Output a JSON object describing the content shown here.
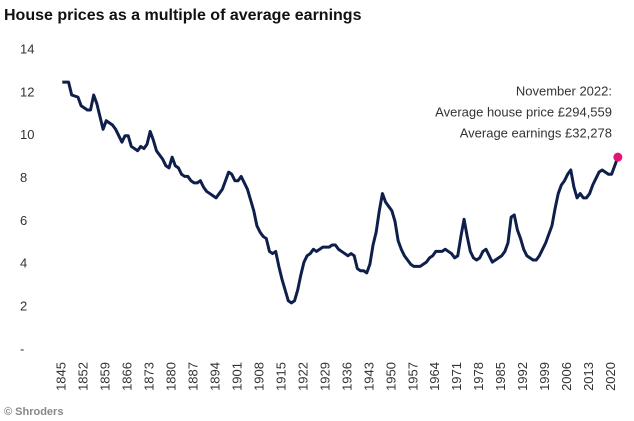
{
  "chart_data": {
    "type": "line",
    "title": "House prices as a multiple of average earnings",
    "annotation": [
      "November 2022:",
      "Average house price £294,559",
      "Average earnings  £32,278"
    ],
    "footer": "© Shroders",
    "color": "#0f1f4b",
    "highlight_color": "#e0157a",
    "grid": false,
    "x": [
      1845,
      1847,
      1848,
      1850,
      1851,
      1853,
      1854,
      1855,
      1856,
      1857,
      1858,
      1859,
      1861,
      1862,
      1863,
      1864,
      1865,
      1866,
      1867,
      1868,
      1869,
      1870,
      1871,
      1872,
      1873,
      1874,
      1875,
      1876,
      1877,
      1878,
      1879,
      1880,
      1881,
      1882,
      1883,
      1884,
      1885,
      1886,
      1887,
      1888,
      1889,
      1890,
      1891,
      1892,
      1893,
      1894,
      1895,
      1896,
      1897,
      1898,
      1899,
      1900,
      1901,
      1902,
      1903,
      1904,
      1905,
      1906,
      1907,
      1908,
      1909,
      1910,
      1911,
      1912,
      1913,
      1914,
      1915,
      1916,
      1917,
      1918,
      1919,
      1920,
      1921,
      1922,
      1923,
      1924,
      1925,
      1926,
      1927,
      1928,
      1929,
      1930,
      1931,
      1932,
      1933,
      1934,
      1935,
      1936,
      1937,
      1938,
      1939,
      1940,
      1941,
      1942,
      1943,
      1944,
      1945,
      1946,
      1947,
      1948,
      1949,
      1950,
      1951,
      1952,
      1953,
      1954,
      1955,
      1956,
      1957,
      1958,
      1959,
      1960,
      1961,
      1962,
      1963,
      1964,
      1965,
      1966,
      1967,
      1968,
      1969,
      1970,
      1971,
      1972,
      1973,
      1974,
      1975,
      1976,
      1977,
      1978,
      1979,
      1980,
      1981,
      1982,
      1983,
      1984,
      1985,
      1986,
      1987,
      1988,
      1989,
      1990,
      1991,
      1992,
      1993,
      1994,
      1995,
      1996,
      1997,
      1998,
      1999,
      2000,
      2001,
      2002,
      2003,
      2004,
      2005,
      2006,
      2007,
      2008,
      2009,
      2010,
      2011,
      2012,
      2013,
      2014,
      2015,
      2016,
      2017,
      2018,
      2019,
      2020,
      2021,
      2022
    ],
    "values": [
      12.5,
      12.5,
      11.9,
      11.8,
      11.4,
      11.2,
      11.2,
      11.9,
      11.5,
      10.9,
      10.3,
      10.7,
      10.5,
      10.3,
      10.0,
      9.7,
      10.0,
      10.0,
      9.5,
      9.4,
      9.3,
      9.5,
      9.4,
      9.6,
      10.2,
      9.8,
      9.3,
      9.1,
      8.9,
      8.6,
      8.5,
      9.0,
      8.6,
      8.5,
      8.2,
      8.1,
      8.1,
      7.9,
      7.8,
      7.8,
      7.9,
      7.6,
      7.4,
      7.3,
      7.2,
      7.1,
      7.3,
      7.5,
      7.9,
      8.3,
      8.2,
      7.9,
      7.9,
      8.1,
      7.8,
      7.5,
      7.0,
      6.5,
      5.8,
      5.5,
      5.3,
      5.2,
      4.6,
      4.5,
      4.6,
      3.9,
      3.3,
      2.8,
      2.3,
      2.2,
      2.3,
      2.8,
      3.5,
      4.1,
      4.4,
      4.5,
      4.7,
      4.6,
      4.7,
      4.8,
      4.8,
      4.8,
      4.9,
      4.9,
      4.7,
      4.6,
      4.5,
      4.4,
      4.5,
      4.4,
      3.8,
      3.7,
      3.7,
      3.6,
      4.0,
      4.9,
      5.5,
      6.5,
      7.3,
      6.9,
      6.7,
      6.5,
      6.0,
      5.1,
      4.7,
      4.4,
      4.2,
      4.0,
      3.9,
      3.9,
      3.9,
      4.0,
      4.1,
      4.3,
      4.4,
      4.6,
      4.6,
      4.6,
      4.7,
      4.6,
      4.5,
      4.3,
      4.4,
      5.3,
      6.1,
      5.3,
      4.6,
      4.3,
      4.2,
      4.3,
      4.6,
      4.7,
      4.4,
      4.1,
      4.2,
      4.3,
      4.4,
      4.6,
      5.0,
      6.2,
      6.3,
      5.6,
      5.2,
      4.7,
      4.4,
      4.3,
      4.2,
      4.2,
      4.4,
      4.7,
      5.0,
      5.4,
      5.8,
      6.6,
      7.3,
      7.7,
      7.9,
      8.2,
      8.4,
      7.6,
      7.1,
      7.3,
      7.1,
      7.1,
      7.3,
      7.7,
      8.0,
      8.3,
      8.4,
      8.3,
      8.2,
      8.2,
      8.6,
      9.0
    ],
    "xlim": [
      1843,
      2023
    ],
    "xticks": [
      1845,
      1852,
      1859,
      1866,
      1873,
      1880,
      1887,
      1894,
      1901,
      1908,
      1915,
      1922,
      1929,
      1936,
      1943,
      1950,
      1957,
      1964,
      1971,
      1978,
      1985,
      1992,
      1999,
      2006,
      2013,
      2020
    ],
    "ylim": [
      0,
      14
    ],
    "yticks": [
      {
        "value": 0,
        "label": "-"
      },
      2,
      4,
      6,
      8,
      10,
      12,
      14
    ]
  }
}
